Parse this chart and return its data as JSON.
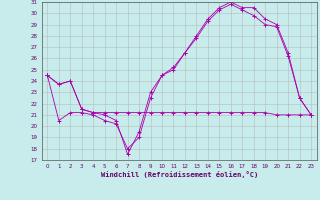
{
  "xlabel": "Windchill (Refroidissement éolien,°C)",
  "background_color": "#c8ecec",
  "grid_color": "#b0b0b0",
  "line_color": "#aa00aa",
  "xlim": [
    -0.5,
    23.5
  ],
  "ylim": [
    17,
    31
  ],
  "xticks": [
    0,
    1,
    2,
    3,
    4,
    5,
    6,
    7,
    8,
    9,
    10,
    11,
    12,
    13,
    14,
    15,
    16,
    17,
    18,
    19,
    20,
    21,
    22,
    23
  ],
  "yticks": [
    17,
    18,
    19,
    20,
    21,
    22,
    23,
    24,
    25,
    26,
    27,
    28,
    29,
    30,
    31
  ],
  "series1_x": [
    0,
    1,
    2,
    3,
    4,
    5,
    6,
    7,
    8,
    9,
    10,
    11,
    12,
    13,
    14,
    15,
    16,
    17,
    18,
    19,
    20,
    21,
    22,
    23
  ],
  "series1_y": [
    24.5,
    23.7,
    24.0,
    21.5,
    21.2,
    21.2,
    21.2,
    21.2,
    21.2,
    21.2,
    21.2,
    21.2,
    21.2,
    21.2,
    21.2,
    21.2,
    21.2,
    21.2,
    21.2,
    21.2,
    21.0,
    21.0,
    21.0,
    21.0
  ],
  "series2_x": [
    0,
    1,
    2,
    3,
    4,
    5,
    6,
    7,
    8,
    9,
    10,
    11,
    12,
    13,
    14,
    15,
    16,
    17,
    18,
    19,
    20,
    21,
    22,
    23
  ],
  "series2_y": [
    24.5,
    20.5,
    21.2,
    21.2,
    21.0,
    20.5,
    20.2,
    18.0,
    19.0,
    22.5,
    24.5,
    25.2,
    26.5,
    27.8,
    29.3,
    30.3,
    30.8,
    30.3,
    29.8,
    29.0,
    28.8,
    26.2,
    22.5,
    21.0
  ],
  "series3_x": [
    0,
    1,
    2,
    3,
    4,
    5,
    6,
    7,
    8,
    9,
    10,
    11,
    12,
    13,
    14,
    15,
    16,
    17,
    18,
    19,
    20,
    21,
    22,
    23
  ],
  "series3_y": [
    24.5,
    23.7,
    24.0,
    21.5,
    21.2,
    21.0,
    20.5,
    17.5,
    19.5,
    23.0,
    24.5,
    25.0,
    26.5,
    28.0,
    29.5,
    30.5,
    31.0,
    30.5,
    30.5,
    29.5,
    29.0,
    26.5,
    22.5,
    21.0
  ]
}
